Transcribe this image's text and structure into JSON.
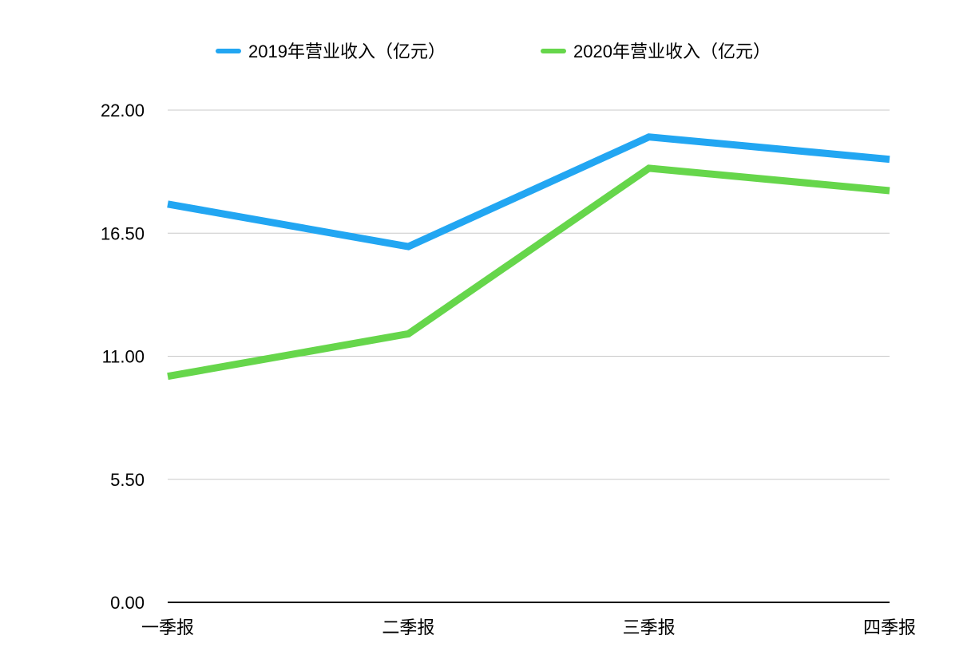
{
  "chart_data": {
    "type": "line",
    "categories": [
      "一季报",
      "二季报",
      "三季报",
      "四季报"
    ],
    "series": [
      {
        "name": "2019年营业收入（亿元）",
        "color": "#22a6f2",
        "values": [
          17.8,
          15.9,
          20.8,
          19.8
        ]
      },
      {
        "name": "2020年营业收入（亿元）",
        "color": "#66d64b",
        "values": [
          10.1,
          12.0,
          19.4,
          18.4
        ]
      }
    ],
    "y_ticks": [
      "0.00",
      "5.50",
      "11.00",
      "16.50",
      "22.00"
    ],
    "ylim": [
      0,
      22
    ],
    "grid": true,
    "legend_position": "top-center",
    "title": "",
    "xlabel": "",
    "ylabel": ""
  }
}
